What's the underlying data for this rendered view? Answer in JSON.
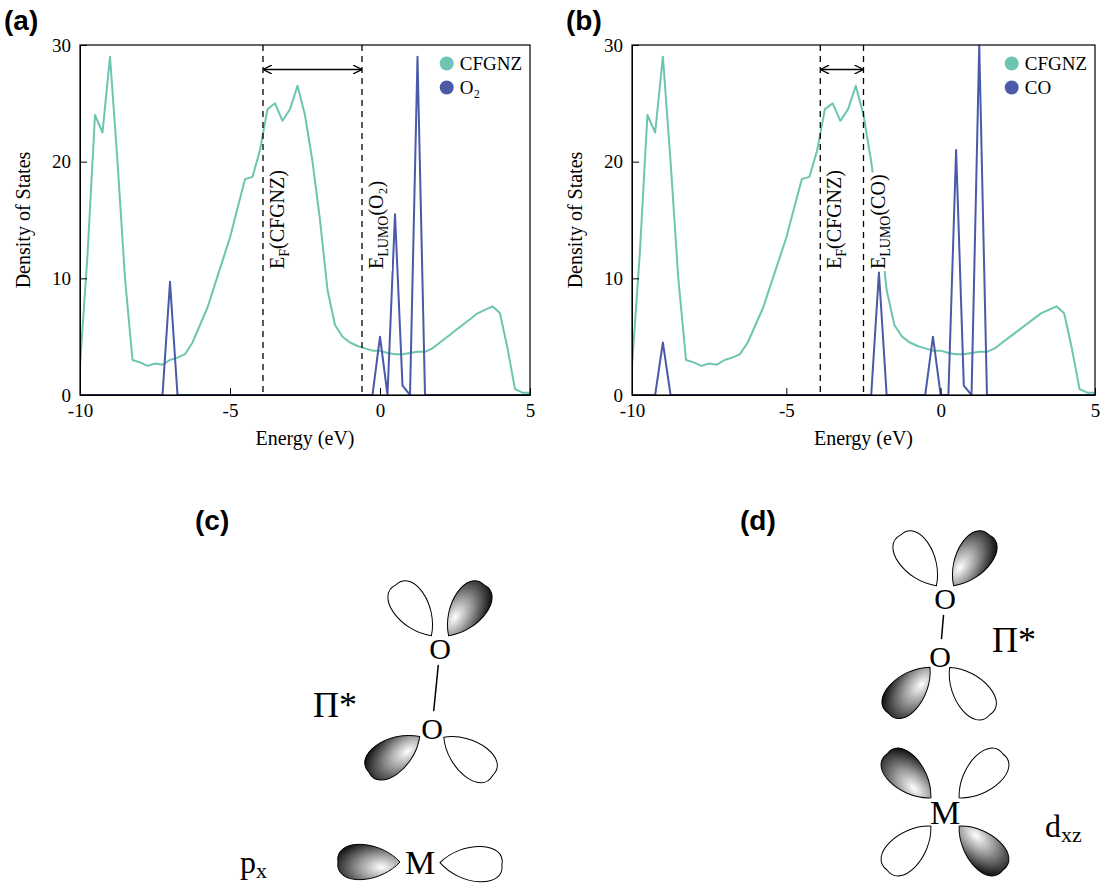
{
  "chart_data": [
    {
      "type": "line",
      "panel": "(a)",
      "x_label": "Energy (eV)",
      "y_label": "Density of States",
      "xlim": [
        -10,
        5
      ],
      "xticks": [
        -10,
        -5,
        0,
        5
      ],
      "ylim": [
        0,
        30
      ],
      "yticks": [
        0,
        10,
        20,
        30
      ],
      "grid": false,
      "legend": "upper right",
      "x": [
        -10,
        -9.75,
        -9.5,
        -9.25,
        -9,
        -8.75,
        -8.5,
        -8.25,
        -8,
        -7.75,
        -7.5,
        -7.25,
        -7,
        -6.75,
        -6.5,
        -6.25,
        -6,
        -5.75,
        -5.5,
        -5.25,
        -5,
        -4.75,
        -4.5,
        -4.25,
        -4,
        -3.75,
        -3.5,
        -3.25,
        -3,
        -2.75,
        -2.5,
        -2.25,
        -2,
        -1.75,
        -1.5,
        -1.25,
        -1,
        -0.75,
        -0.5,
        -0.25,
        0,
        0.25,
        0.5,
        0.75,
        1,
        1.25,
        1.5,
        1.75,
        2,
        2.25,
        2.5,
        2.75,
        3,
        3.25,
        3.5,
        3.75,
        4,
        4.25,
        4.5,
        4.75,
        5
      ],
      "series": [
        {
          "name": "CFGNZ",
          "color": "#6cc5b0",
          "values": [
            2.5,
            12,
            24,
            22.5,
            29,
            20,
            10,
            3,
            2.8,
            2.5,
            2.7,
            2.6,
            3,
            3.2,
            3.5,
            4.5,
            6,
            7.5,
            9.5,
            11.5,
            13.5,
            16,
            18.5,
            18.7,
            21,
            24.5,
            25,
            23.5,
            24.5,
            26.5,
            24,
            20,
            15,
            9,
            6,
            5,
            4.5,
            4.2,
            4,
            3.8,
            3.8,
            3.6,
            3.5,
            3.5,
            3.6,
            3.7,
            3.7,
            4,
            4.5,
            5,
            5.5,
            6,
            6.5,
            7,
            7.3,
            7.6,
            7,
            4,
            0.5,
            0.2,
            0.2
          ]
        },
        {
          "name": "O₂",
          "color": "#4a5aa8",
          "values": [
            0,
            0,
            0,
            0,
            0,
            0,
            0,
            0,
            0,
            0,
            0,
            0,
            9.7,
            0,
            0,
            0,
            0,
            0,
            0,
            0,
            0,
            0,
            0,
            0,
            0,
            0,
            0,
            0,
            0,
            0,
            0,
            0,
            0,
            0,
            0,
            0,
            0,
            0,
            0,
            0,
            5,
            0,
            15.5,
            0.8,
            0,
            29,
            0,
            0,
            0,
            0,
            0,
            0,
            0,
            0,
            0,
            0,
            0,
            0,
            0,
            0,
            0
          ]
        }
      ],
      "annotations": [
        {
          "x": -3.9,
          "base": "E",
          "sub": "F",
          "suffix": "(CFGNZ)"
        },
        {
          "x": -0.6,
          "base": "E",
          "sub": "LUMO",
          "suffix": "(O₂)"
        }
      ]
    },
    {
      "type": "line",
      "panel": "(b)",
      "x_label": "Energy (eV)",
      "y_label": "Density of States",
      "xlim": [
        -10,
        5
      ],
      "xticks": [
        -10,
        -5,
        0,
        5
      ],
      "ylim": [
        0,
        30
      ],
      "yticks": [
        0,
        10,
        20,
        30
      ],
      "grid": false,
      "legend": "upper right",
      "x": [
        -10,
        -9.75,
        -9.5,
        -9.25,
        -9,
        -8.75,
        -8.5,
        -8.25,
        -8,
        -7.75,
        -7.5,
        -7.25,
        -7,
        -6.75,
        -6.5,
        -6.25,
        -6,
        -5.75,
        -5.5,
        -5.25,
        -5,
        -4.75,
        -4.5,
        -4.25,
        -4,
        -3.75,
        -3.5,
        -3.25,
        -3,
        -2.75,
        -2.5,
        -2.25,
        -2,
        -1.75,
        -1.5,
        -1.25,
        -1,
        -0.75,
        -0.5,
        -0.25,
        0,
        0.25,
        0.5,
        0.75,
        1,
        1.25,
        1.5,
        1.75,
        2,
        2.25,
        2.5,
        2.75,
        3,
        3.25,
        3.5,
        3.75,
        4,
        4.25,
        4.5,
        4.75,
        5
      ],
      "series": [
        {
          "name": "CFGNZ",
          "color": "#6cc5b0",
          "values": [
            2.5,
            12,
            24,
            22.5,
            29,
            20,
            10,
            3,
            2.8,
            2.5,
            2.7,
            2.6,
            3,
            3.2,
            3.5,
            4.5,
            6,
            7.5,
            9.5,
            11.5,
            13.5,
            16,
            18.5,
            18.7,
            21,
            24.5,
            25,
            23.5,
            24.5,
            26.5,
            24,
            20,
            15,
            9,
            6,
            5,
            4.5,
            4.2,
            4,
            3.8,
            3.8,
            3.6,
            3.5,
            3.5,
            3.6,
            3.7,
            3.7,
            4,
            4.5,
            5,
            5.5,
            6,
            6.5,
            7,
            7.3,
            7.6,
            7,
            4,
            0.5,
            0.2,
            0.2
          ]
        },
        {
          "name": "CO",
          "color": "#4a5aa8",
          "values": [
            0,
            0,
            0,
            0,
            4.5,
            0,
            0,
            0,
            0,
            0,
            0,
            0,
            0,
            0,
            0,
            0,
            0,
            0,
            0,
            0,
            0,
            0,
            0,
            0,
            0,
            0,
            0,
            0,
            0,
            0,
            0,
            0,
            10.5,
            0,
            0,
            0,
            0,
            0,
            0,
            5,
            0,
            0,
            21,
            0.8,
            0,
            30,
            0,
            0,
            0,
            0,
            0,
            0,
            0,
            0,
            0,
            0,
            0,
            0,
            0,
            0,
            0
          ]
        }
      ],
      "annotations": [
        {
          "x": -3.9,
          "base": "E",
          "sub": "F",
          "suffix": "(CFGNZ)"
        },
        {
          "x": -2.5,
          "base": "E",
          "sub": "LUMO",
          "suffix": "(CO)"
        }
      ]
    }
  ],
  "diagrams": [
    {
      "panel": "(c)",
      "atoms": [
        "O",
        "O",
        "M"
      ],
      "orbital": "Π*",
      "metal_orbital": {
        "base": "p",
        "sub": "x"
      }
    },
    {
      "panel": "(d)",
      "atoms": [
        "O",
        "O",
        "M"
      ],
      "orbital": "Π*",
      "metal_orbital": {
        "base": "d",
        "sub": "xz"
      }
    }
  ]
}
